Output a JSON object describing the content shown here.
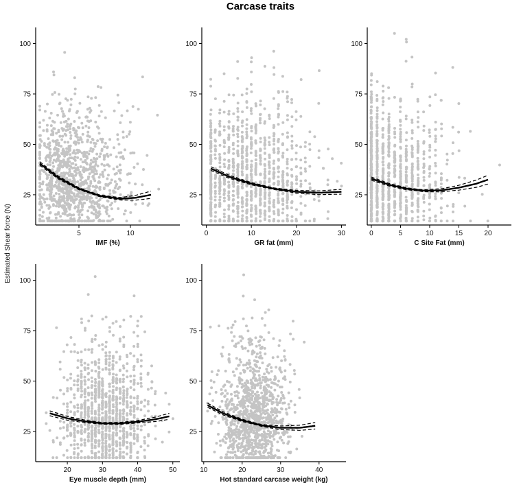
{
  "figure": {
    "title": "Carcase traits",
    "shared_ylabel": "Estimated Shear force (N)"
  },
  "colors": {
    "points": "#c4c4c4",
    "fit_line": "#000000",
    "ci_line": "#000000",
    "axis": "#000000"
  },
  "chart_data": [
    {
      "type": "scatter",
      "xlabel": "IMF (%)",
      "ylabel": "Estimated Shear force (N)",
      "xlim": [
        0.8,
        14.8
      ],
      "ylim": [
        10,
        108
      ],
      "xticks": [
        5,
        10
      ],
      "yticks": [
        25,
        50,
        75,
        100
      ],
      "point_cloud": {
        "x_center": 4.3,
        "x_spread": 1.7,
        "x_range": [
          1.2,
          13.5
        ],
        "y_center": 32,
        "y_spread": 13,
        "y_range": [
          12,
          105
        ],
        "skew": "right",
        "n": 1100
      },
      "fit": {
        "x": [
          1.2,
          3,
          5,
          7,
          9,
          10.5,
          12
        ],
        "y": [
          40.5,
          33.5,
          28,
          24.5,
          23,
          23.5,
          25
        ]
      },
      "ci_halfwidth": {
        "x": [
          1.2,
          6,
          9,
          12
        ],
        "hw": [
          0.9,
          0.4,
          0.6,
          1.8
        ]
      }
    },
    {
      "type": "scatter",
      "xlabel": "GR fat (mm)",
      "ylabel": "Estimated Shear force (N)",
      "xlim": [
        -1,
        31
      ],
      "ylim": [
        10,
        108
      ],
      "xticks": [
        0,
        10,
        20,
        30
      ],
      "yticks": [
        25,
        50,
        75,
        100
      ],
      "point_cloud": {
        "x_center": 10,
        "x_spread": 7,
        "x_range": [
          1,
          30
        ],
        "y_center": 32,
        "y_spread": 14,
        "y_range": [
          12,
          105
        ],
        "discrete_x": true,
        "n": 1100
      },
      "fit": {
        "x": [
          1,
          5,
          10,
          15,
          20,
          25,
          30
        ],
        "y": [
          38,
          34,
          30.5,
          28,
          26.5,
          26,
          26.5
        ]
      },
      "ci_halfwidth": {
        "x": [
          1,
          15,
          30
        ],
        "hw": [
          0.9,
          0.4,
          1.2
        ]
      }
    },
    {
      "type": "scatter",
      "xlabel": "C Site Fat (mm)",
      "ylabel": "Estimated Shear force (N)",
      "xlim": [
        -0.7,
        24
      ],
      "ylim": [
        10,
        108
      ],
      "xticks": [
        0,
        5,
        10,
        15,
        20
      ],
      "yticks": [
        25,
        50,
        75,
        100
      ],
      "point_cloud": {
        "x_center": 3,
        "x_spread": 3,
        "x_range": [
          0,
          23
        ],
        "y_center": 32,
        "y_spread": 14,
        "y_range": [
          12,
          105
        ],
        "discrete_x": true,
        "skew": "right",
        "n": 1000
      },
      "fit": {
        "x": [
          0,
          3,
          6,
          9,
          12,
          15,
          18,
          20
        ],
        "y": [
          33,
          30,
          28,
          27,
          27.2,
          28.5,
          30.5,
          32.5
        ]
      },
      "ci_halfwidth": {
        "x": [
          0,
          8,
          14,
          20
        ],
        "hw": [
          0.8,
          0.4,
          1.0,
          2.2
        ]
      }
    },
    {
      "type": "scatter",
      "xlabel": "Eye muscle depth (mm)",
      "ylabel": "Estimated Shear force (N)",
      "xlim": [
        11,
        52
      ],
      "ylim": [
        10,
        108
      ],
      "xticks": [
        20,
        30,
        40,
        50
      ],
      "yticks": [
        25,
        50,
        75,
        100
      ],
      "point_cloud": {
        "x_center": 31,
        "x_spread": 6,
        "x_range": [
          14,
          50
        ],
        "y_center": 32,
        "y_spread": 13,
        "y_range": [
          12,
          105
        ],
        "discrete_x": true,
        "n": 1100
      },
      "fit": {
        "x": [
          15,
          20,
          25,
          30,
          35,
          40,
          45,
          49
        ],
        "y": [
          34,
          31.5,
          30,
          29,
          29,
          29.8,
          31,
          32.5
        ]
      },
      "ci_halfwidth": {
        "x": [
          15,
          30,
          40,
          49
        ],
        "hw": [
          1.2,
          0.4,
          0.6,
          1.5
        ]
      }
    },
    {
      "type": "scatter",
      "xlabel": "Hot standard carcase weight (kg)",
      "ylabel": "Estimated Shear force (N)",
      "xlim": [
        9.5,
        47
      ],
      "ylim": [
        10,
        108
      ],
      "xticks": [
        10,
        20,
        30,
        40
      ],
      "yticks": [
        25,
        50,
        75,
        100
      ],
      "point_cloud": {
        "x_center": 23,
        "x_spread": 4.5,
        "x_range": [
          11,
          45
        ],
        "y_center": 32,
        "y_spread": 13,
        "y_range": [
          12,
          105
        ],
        "n": 1100
      },
      "fit": {
        "x": [
          11,
          15,
          20,
          25,
          30,
          35,
          39
        ],
        "y": [
          38,
          34,
          30.5,
          28,
          26.8,
          26.8,
          27.8
        ]
      },
      "ci_halfwidth": {
        "x": [
          11,
          24,
          39
        ],
        "hw": [
          1.0,
          0.4,
          1.6
        ]
      }
    }
  ]
}
